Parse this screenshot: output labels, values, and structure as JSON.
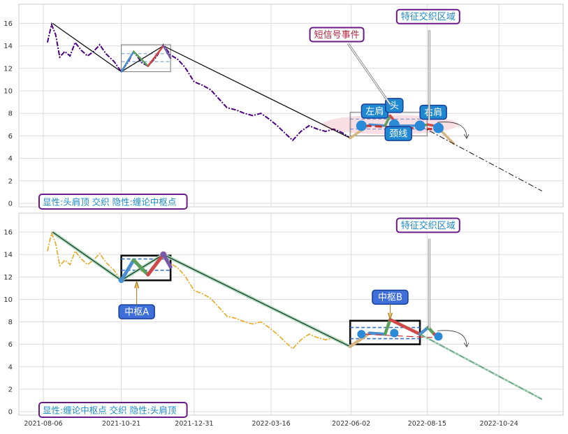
{
  "chart_data": [
    {
      "type": "line",
      "panel": "top",
      "ylim": [
        -0.3,
        17.5
      ],
      "yticks": [
        0,
        2,
        4,
        6,
        8,
        10,
        12,
        14,
        16
      ],
      "xlim": [
        "2021-08-01",
        "2022-12-31"
      ],
      "grid": true,
      "series": [
        {
          "role": "price",
          "color": "#4b0082",
          "style": "dashdot",
          "points": [
            [
              "2021-08-10",
              14.3
            ],
            [
              "2021-08-14",
              15.9
            ],
            [
              "2021-08-18",
              15.0
            ],
            [
              "2021-08-22",
              13.0
            ],
            [
              "2021-08-27",
              13.5
            ],
            [
              "2021-09-01",
              13.1
            ],
            [
              "2021-09-06",
              14.3
            ],
            [
              "2021-09-12",
              13.6
            ],
            [
              "2021-09-18",
              13.1
            ],
            [
              "2021-09-24",
              13.5
            ],
            [
              "2021-09-30",
              14.1
            ],
            [
              "2021-10-06",
              13.3
            ],
            [
              "2021-10-14",
              12.6
            ],
            [
              "2021-10-21",
              11.7
            ],
            [
              "2021-10-28",
              12.6
            ],
            [
              "2021-11-02",
              13.5
            ],
            [
              "2021-11-10",
              12.5
            ],
            [
              "2021-11-16",
              12.2
            ],
            [
              "2021-11-24",
              13.0
            ],
            [
              "2021-12-01",
              14.1
            ],
            [
              "2021-12-08",
              13.2
            ],
            [
              "2021-12-15",
              12.8
            ],
            [
              "2021-12-22",
              12.1
            ],
            [
              "2021-12-31",
              10.8
            ],
            [
              "2022-01-08",
              10.5
            ],
            [
              "2022-01-16",
              10.1
            ],
            [
              "2022-01-24",
              9.3
            ],
            [
              "2022-02-01",
              8.5
            ],
            [
              "2022-02-10",
              8.3
            ],
            [
              "2022-02-18",
              8.0
            ],
            [
              "2022-02-26",
              7.8
            ],
            [
              "2022-03-06",
              8.0
            ],
            [
              "2022-03-14",
              7.5
            ],
            [
              "2022-03-22",
              6.9
            ],
            [
              "2022-03-30",
              6.2
            ],
            [
              "2022-04-06",
              5.6
            ],
            [
              "2022-04-14",
              6.4
            ],
            [
              "2022-04-22",
              6.9
            ],
            [
              "2022-04-30",
              6.6
            ],
            [
              "2022-05-08",
              6.4
            ],
            [
              "2022-05-16",
              6.6
            ],
            [
              "2022-05-24",
              6.3
            ],
            [
              "2022-06-01",
              5.8
            ]
          ]
        },
        {
          "role": "trend",
          "color": "#111111",
          "points": [
            [
              "2021-08-15",
              16.0
            ],
            [
              "2021-10-21",
              11.7
            ],
            [
              "2021-12-01",
              14.0
            ],
            [
              "2022-06-01",
              5.8
            ]
          ]
        },
        {
          "role": "pattern",
          "points": [
            [
              "2022-06-01",
              5.8
            ],
            [
              "2022-06-20",
              7.0
            ],
            [
              "2022-07-05",
              6.9
            ],
            [
              "2022-07-10",
              7.8
            ],
            [
              "2022-07-18",
              6.9
            ],
            [
              "2022-08-08",
              6.9
            ],
            [
              "2022-08-16",
              7.0
            ],
            [
              "2022-08-22",
              6.9
            ],
            [
              "2022-08-26",
              6.7
            ],
            [
              "2022-09-10",
              5.3
            ]
          ]
        },
        {
          "role": "projection",
          "color": "#111111",
          "style": "dashdot",
          "points": [
            [
              "2022-08-08",
              6.9
            ],
            [
              "2022-12-05",
              1.1
            ]
          ]
        }
      ],
      "zhongshu_boxes": [
        {
          "x": [
            "2021-10-21",
            "2021-12-08"
          ],
          "y": [
            11.7,
            14.1
          ],
          "inner": [
            12.6,
            13.3
          ]
        },
        {
          "x": [
            "2022-06-01",
            "2022-08-15"
          ],
          "y": [
            6.0,
            8.1
          ],
          "inner": [
            6.6,
            7.5
          ]
        }
      ],
      "markers": [
        {
          "date": "2022-06-12",
          "value": 6.9
        },
        {
          "date": "2022-07-14",
          "value": 7.0
        },
        {
          "date": "2022-08-08",
          "value": 6.9
        },
        {
          "date": "2022-08-26",
          "value": 6.7
        }
      ],
      "annotations": [
        {
          "text": "短信号事件",
          "at": [
            "2022-05-19",
            15.0
          ],
          "style": "outline_red"
        },
        {
          "text": "特征交织区域",
          "at": [
            "2022-08-16",
            16.6
          ],
          "style": "outline_blue"
        },
        {
          "text": "左肩",
          "at": [
            "2022-06-25",
            8.2
          ],
          "style": "filled"
        },
        {
          "text": "头",
          "at": [
            "2022-07-14",
            8.7
          ],
          "style": "filled"
        },
        {
          "text": "右肩",
          "at": [
            "2022-08-21",
            8.1
          ],
          "style": "filled"
        },
        {
          "text": "颈线",
          "at": [
            "2022-07-18",
            6.2
          ],
          "style": "filled"
        }
      ],
      "caption": "显性:头肩顶 交织 隐性:缠论中枢点"
    },
    {
      "type": "line",
      "panel": "bottom",
      "ylim": [
        -0.3,
        17.5
      ],
      "yticks": [
        0,
        2,
        4,
        6,
        8,
        10,
        12,
        14,
        16
      ],
      "xlim": [
        "2021-08-01",
        "2022-12-31"
      ],
      "xticks": [
        "2021-08-06",
        "2021-10-21",
        "2021-12-31",
        "2022-03-16",
        "2022-06-02",
        "2022-08-15",
        "2022-10-24"
      ],
      "grid": true,
      "series": [
        {
          "role": "price",
          "color": "#e8a820",
          "style": "dashdot",
          "points": [
            [
              "2021-08-10",
              14.3
            ],
            [
              "2021-08-14",
              15.9
            ],
            [
              "2021-08-18",
              15.0
            ],
            [
              "2021-08-22",
              13.0
            ],
            [
              "2021-08-27",
              13.5
            ],
            [
              "2021-09-01",
              13.1
            ],
            [
              "2021-09-06",
              14.3
            ],
            [
              "2021-09-12",
              13.6
            ],
            [
              "2021-09-18",
              13.1
            ],
            [
              "2021-09-24",
              13.5
            ],
            [
              "2021-09-30",
              14.1
            ],
            [
              "2021-10-06",
              13.3
            ],
            [
              "2021-10-14",
              12.6
            ],
            [
              "2021-10-21",
              11.7
            ],
            [
              "2021-10-28",
              12.6
            ],
            [
              "2021-11-02",
              13.5
            ],
            [
              "2021-11-10",
              12.5
            ],
            [
              "2021-11-16",
              12.2
            ],
            [
              "2021-11-24",
              13.0
            ],
            [
              "2021-12-01",
              14.1
            ],
            [
              "2021-12-08",
              13.2
            ],
            [
              "2021-12-15",
              12.8
            ],
            [
              "2021-12-22",
              12.1
            ],
            [
              "2021-12-31",
              10.8
            ],
            [
              "2022-01-08",
              10.5
            ],
            [
              "2022-01-16",
              10.1
            ],
            [
              "2022-01-24",
              9.3
            ],
            [
              "2022-02-01",
              8.5
            ],
            [
              "2022-02-10",
              8.3
            ],
            [
              "2022-02-18",
              8.0
            ],
            [
              "2022-02-26",
              7.8
            ],
            [
              "2022-03-06",
              8.0
            ],
            [
              "2022-03-14",
              7.5
            ],
            [
              "2022-03-22",
              6.9
            ],
            [
              "2022-03-30",
              6.2
            ],
            [
              "2022-04-06",
              5.6
            ],
            [
              "2022-04-14",
              6.4
            ],
            [
              "2022-04-22",
              6.9
            ],
            [
              "2022-04-30",
              6.6
            ],
            [
              "2022-05-08",
              6.4
            ],
            [
              "2022-05-16",
              6.6
            ],
            [
              "2022-05-24",
              6.3
            ],
            [
              "2022-06-01",
              5.8
            ]
          ]
        },
        {
          "role": "trend",
          "color": "#1a3a2a",
          "points": [
            [
              "2021-08-15",
              16.0
            ],
            [
              "2021-10-21",
              11.7
            ],
            [
              "2021-12-01",
              14.0
            ],
            [
              "2022-06-01",
              5.8
            ]
          ]
        },
        {
          "role": "pattern",
          "points": [
            [
              "2022-06-01",
              5.8
            ],
            [
              "2022-06-20",
              7.0
            ],
            [
              "2022-07-05",
              6.9
            ],
            [
              "2022-07-10",
              8.2
            ],
            [
              "2022-08-08",
              6.9
            ],
            [
              "2022-08-16",
              7.5
            ],
            [
              "2022-08-22",
              6.9
            ],
            [
              "2022-08-26",
              6.7
            ]
          ]
        },
        {
          "role": "projection",
          "color": "#1a3a2a",
          "style": "dashdot",
          "points": [
            [
              "2022-08-08",
              6.9
            ],
            [
              "2022-12-05",
              1.1
            ]
          ]
        }
      ],
      "zhongshu_boxes": [
        {
          "x": [
            "2021-10-21",
            "2021-12-08"
          ],
          "y": [
            11.7,
            13.9
          ],
          "inner": [
            12.6,
            13.6
          ]
        },
        {
          "x": [
            "2022-06-01",
            "2022-08-08"
          ],
          "y": [
            6.0,
            8.1
          ],
          "inner": [
            6.5,
            7.5
          ]
        }
      ],
      "markers": [
        {
          "date": "2022-06-12",
          "value": 6.9
        },
        {
          "date": "2022-07-14",
          "value": 7.0
        },
        {
          "date": "2022-08-26",
          "value": 6.7
        }
      ],
      "annotations": [
        {
          "text": "特征交织区域",
          "at": [
            "2022-08-16",
            16.6
          ],
          "style": "outline_blue"
        },
        {
          "text": "中枢A",
          "at": [
            "2021-11-05",
            8.9
          ],
          "style": "filled"
        },
        {
          "text": "中枢B",
          "at": [
            "2022-07-10",
            10.2
          ],
          "style": "filled"
        }
      ],
      "caption": "显性:缠论中枢点 交织 隐性:头肩顶"
    }
  ]
}
